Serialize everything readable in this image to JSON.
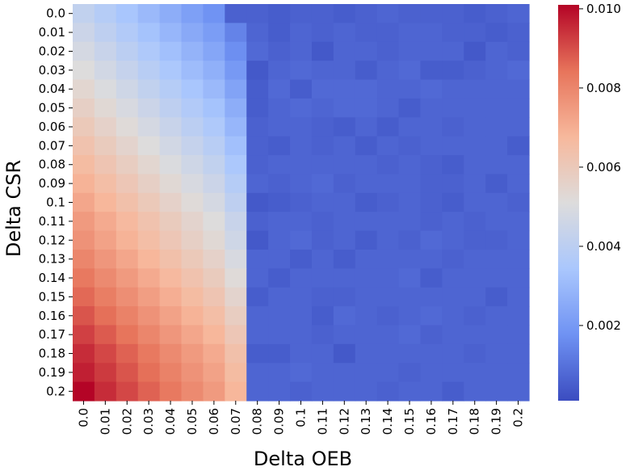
{
  "chart_data": {
    "type": "heatmap",
    "title": "",
    "xlabel": "Delta OEB",
    "ylabel": "Delta CSR",
    "x_categories": [
      "0.0",
      "0.01",
      "0.02",
      "0.03",
      "0.04",
      "0.05",
      "0.06",
      "0.07",
      "0.08",
      "0.09",
      "0.1",
      "0.11",
      "0.12",
      "0.13",
      "0.14",
      "0.15",
      "0.16",
      "0.17",
      "0.18",
      "0.19",
      "0.2"
    ],
    "y_categories": [
      "0.0",
      "0.01",
      "0.02",
      "0.03",
      "0.04",
      "0.05",
      "0.06",
      "0.07",
      "0.08",
      "0.09",
      "0.1",
      "0.11",
      "0.12",
      "0.13",
      "0.14",
      "0.15",
      "0.16",
      "0.17",
      "0.18",
      "0.19",
      "0.2"
    ],
    "values": [
      [
        0.0042,
        0.0038,
        0.0034,
        0.003,
        0.0026,
        0.0022,
        0.0018,
        0.0006,
        0.0006,
        0.0005,
        0.0006,
        0.0006,
        0.0005,
        0.0006,
        0.0007,
        0.0006,
        0.0006,
        0.0006,
        0.0005,
        0.0006,
        0.0007
      ],
      [
        0.0045,
        0.0041,
        0.0037,
        0.0033,
        0.0029,
        0.0025,
        0.0021,
        0.0014,
        0.0007,
        0.0005,
        0.0007,
        0.0006,
        0.0007,
        0.0006,
        0.0006,
        0.0007,
        0.0007,
        0.0006,
        0.0006,
        0.0005,
        0.0006
      ],
      [
        0.0048,
        0.0044,
        0.004,
        0.0036,
        0.0032,
        0.0028,
        0.0024,
        0.0017,
        0.0008,
        0.0006,
        0.0007,
        0.0004,
        0.0007,
        0.0007,
        0.0006,
        0.0007,
        0.0007,
        0.0007,
        0.0004,
        0.0007,
        0.0006
      ],
      [
        0.0051,
        0.0047,
        0.0043,
        0.0039,
        0.0035,
        0.0031,
        0.0027,
        0.002,
        0.0004,
        0.0007,
        0.0008,
        0.0007,
        0.0007,
        0.0005,
        0.0007,
        0.0008,
        0.0005,
        0.0005,
        0.0006,
        0.0007,
        0.0008
      ],
      [
        0.0054,
        0.005,
        0.0046,
        0.0042,
        0.0038,
        0.0034,
        0.003,
        0.0023,
        0.0005,
        0.0008,
        0.0005,
        0.0008,
        0.0008,
        0.0008,
        0.0007,
        0.0007,
        0.0008,
        0.0007,
        0.0007,
        0.0007,
        0.0007
      ],
      [
        0.0057,
        0.0053,
        0.0049,
        0.0045,
        0.0041,
        0.0037,
        0.0033,
        0.0026,
        0.0005,
        0.0007,
        0.0008,
        0.0007,
        0.0008,
        0.0008,
        0.0007,
        0.0005,
        0.0007,
        0.0007,
        0.0007,
        0.0007,
        0.0007
      ],
      [
        0.006,
        0.0056,
        0.0052,
        0.0048,
        0.0044,
        0.004,
        0.0036,
        0.0029,
        0.0006,
        0.0007,
        0.0007,
        0.0006,
        0.0005,
        0.0007,
        0.0005,
        0.0007,
        0.0007,
        0.0006,
        0.0007,
        0.0007,
        0.0007
      ],
      [
        0.0063,
        0.0059,
        0.0055,
        0.0051,
        0.0047,
        0.0043,
        0.0039,
        0.0032,
        0.0006,
        0.0005,
        0.0007,
        0.0006,
        0.0007,
        0.0005,
        0.0007,
        0.0006,
        0.0007,
        0.0007,
        0.0007,
        0.0007,
        0.0005
      ],
      [
        0.0066,
        0.0062,
        0.0058,
        0.0054,
        0.005,
        0.0046,
        0.0042,
        0.0035,
        0.0006,
        0.0007,
        0.0007,
        0.0007,
        0.0007,
        0.0007,
        0.0006,
        0.0007,
        0.0006,
        0.0005,
        0.0007,
        0.0007,
        0.0007
      ],
      [
        0.0069,
        0.0065,
        0.0061,
        0.0057,
        0.0053,
        0.0049,
        0.0045,
        0.0038,
        0.0007,
        0.0006,
        0.0007,
        0.0008,
        0.0006,
        0.0007,
        0.0007,
        0.0007,
        0.0006,
        0.0006,
        0.0007,
        0.0005,
        0.0007
      ],
      [
        0.0072,
        0.0068,
        0.0064,
        0.006,
        0.0056,
        0.0052,
        0.0048,
        0.0041,
        0.0004,
        0.0005,
        0.0006,
        0.0007,
        0.0007,
        0.0005,
        0.0006,
        0.0007,
        0.0006,
        0.0005,
        0.0007,
        0.0007,
        0.0006
      ],
      [
        0.0075,
        0.0071,
        0.0067,
        0.0063,
        0.0059,
        0.0055,
        0.0051,
        0.0044,
        0.0006,
        0.0007,
        0.0007,
        0.0006,
        0.0007,
        0.0007,
        0.0007,
        0.0007,
        0.0006,
        0.0007,
        0.0006,
        0.0007,
        0.0007
      ],
      [
        0.0077,
        0.0073,
        0.0069,
        0.0065,
        0.0061,
        0.0057,
        0.0053,
        0.0046,
        0.0004,
        0.0007,
        0.0008,
        0.0006,
        0.0007,
        0.0005,
        0.0007,
        0.0006,
        0.0008,
        0.0007,
        0.0006,
        0.0006,
        0.0007
      ],
      [
        0.008,
        0.0076,
        0.0072,
        0.0068,
        0.0064,
        0.006,
        0.0056,
        0.0049,
        0.0007,
        0.0007,
        0.0005,
        0.0007,
        0.0005,
        0.0007,
        0.0007,
        0.0007,
        0.0007,
        0.0006,
        0.0007,
        0.0007,
        0.0007
      ],
      [
        0.0083,
        0.0079,
        0.0075,
        0.0071,
        0.0067,
        0.0063,
        0.0059,
        0.0052,
        0.0007,
        0.0005,
        0.0007,
        0.0007,
        0.0007,
        0.0007,
        0.0007,
        0.0008,
        0.0005,
        0.0007,
        0.0007,
        0.0007,
        0.0007
      ],
      [
        0.0086,
        0.0082,
        0.0078,
        0.0074,
        0.007,
        0.0066,
        0.0062,
        0.0055,
        0.0005,
        0.0007,
        0.0007,
        0.0006,
        0.0006,
        0.0007,
        0.0007,
        0.0007,
        0.0007,
        0.0007,
        0.0007,
        0.0005,
        0.0007
      ],
      [
        0.0089,
        0.0085,
        0.0081,
        0.0077,
        0.0073,
        0.0069,
        0.0065,
        0.0058,
        0.0007,
        0.0007,
        0.0007,
        0.0005,
        0.0008,
        0.0007,
        0.0006,
        0.0007,
        0.0008,
        0.0007,
        0.0006,
        0.0007,
        0.0007
      ],
      [
        0.0092,
        0.0088,
        0.0084,
        0.008,
        0.0076,
        0.0072,
        0.0068,
        0.0061,
        0.0007,
        0.0007,
        0.0007,
        0.0006,
        0.0007,
        0.0007,
        0.0007,
        0.0008,
        0.0006,
        0.0007,
        0.0007,
        0.0007,
        0.0007
      ],
      [
        0.0095,
        0.0091,
        0.0087,
        0.0083,
        0.0079,
        0.0075,
        0.0071,
        0.0064,
        0.0005,
        0.0005,
        0.0007,
        0.0007,
        0.0004,
        0.0007,
        0.0007,
        0.0007,
        0.0007,
        0.0007,
        0.0006,
        0.0007,
        0.0007
      ],
      [
        0.0097,
        0.0093,
        0.0089,
        0.0085,
        0.0081,
        0.0077,
        0.0073,
        0.0066,
        0.0007,
        0.0007,
        0.0008,
        0.0007,
        0.0007,
        0.0007,
        0.0007,
        0.0006,
        0.0007,
        0.0007,
        0.0007,
        0.0007,
        0.0007
      ],
      [
        0.0101,
        0.0095,
        0.0091,
        0.0087,
        0.0083,
        0.0079,
        0.0075,
        0.0068,
        0.0007,
        0.0007,
        0.0006,
        0.0007,
        0.0007,
        0.0007,
        0.0006,
        0.0007,
        0.0007,
        0.0005,
        0.0007,
        0.0007,
        0.0007
      ]
    ],
    "colormap": "coolwarm",
    "colormap_stops": [
      "#3b4cc0",
      "#6f92f3",
      "#aac7fd",
      "#dddcdc",
      "#f7b89c",
      "#e7745b",
      "#b40426"
    ],
    "vmin": 0.0001,
    "vmax": 0.0101,
    "colorbar": {
      "ticks": [
        0.002,
        0.004,
        0.006,
        0.008,
        0.01
      ],
      "tick_labels": [
        "0.002",
        "0.004",
        "0.006",
        "0.008",
        "0.010"
      ]
    },
    "grid": false,
    "legend": "colorbar-right"
  }
}
